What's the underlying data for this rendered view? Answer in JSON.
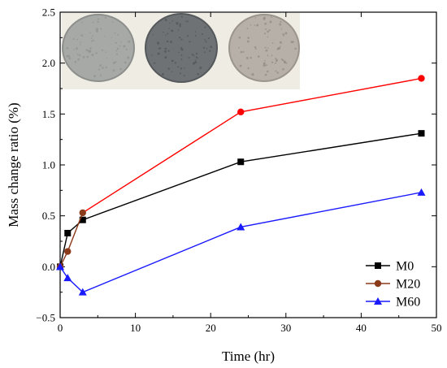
{
  "chart_data": {
    "type": "line",
    "xlabel": "Time (hr)",
    "ylabel": "Mass change ratio (%)",
    "xlim": [
      0,
      50
    ],
    "ylim": [
      -0.5,
      2.5
    ],
    "xticks": [
      0,
      10,
      20,
      30,
      40,
      50
    ],
    "yticks": [
      -0.5,
      0.0,
      0.5,
      1.0,
      1.5,
      2.0,
      2.5
    ],
    "ytick_labels": [
      "−0.5",
      "0.0",
      "0.5",
      "1.0",
      "1.5",
      "2.0",
      "2.5"
    ],
    "grid": false,
    "legend_position": "bottom-right",
    "inset": "photograph of three circular specimen discs",
    "series": [
      {
        "name": "M0",
        "color": "#000000",
        "marker": "square",
        "x": [
          0,
          1,
          3,
          24,
          48
        ],
        "y": [
          0.0,
          0.33,
          0.46,
          1.03,
          1.31
        ]
      },
      {
        "name": "M20",
        "color": "#ff0000",
        "line_color_early": "#8b3a1a",
        "marker": "circle",
        "x": [
          0,
          1,
          3,
          24,
          48
        ],
        "y": [
          0.0,
          0.15,
          0.53,
          1.52,
          1.85
        ]
      },
      {
        "name": "M60",
        "color": "#1a1aff",
        "marker": "triangle",
        "x": [
          0,
          1,
          3,
          24,
          48
        ],
        "y": [
          0.0,
          -0.11,
          -0.25,
          0.39,
          0.73
        ]
      }
    ]
  }
}
